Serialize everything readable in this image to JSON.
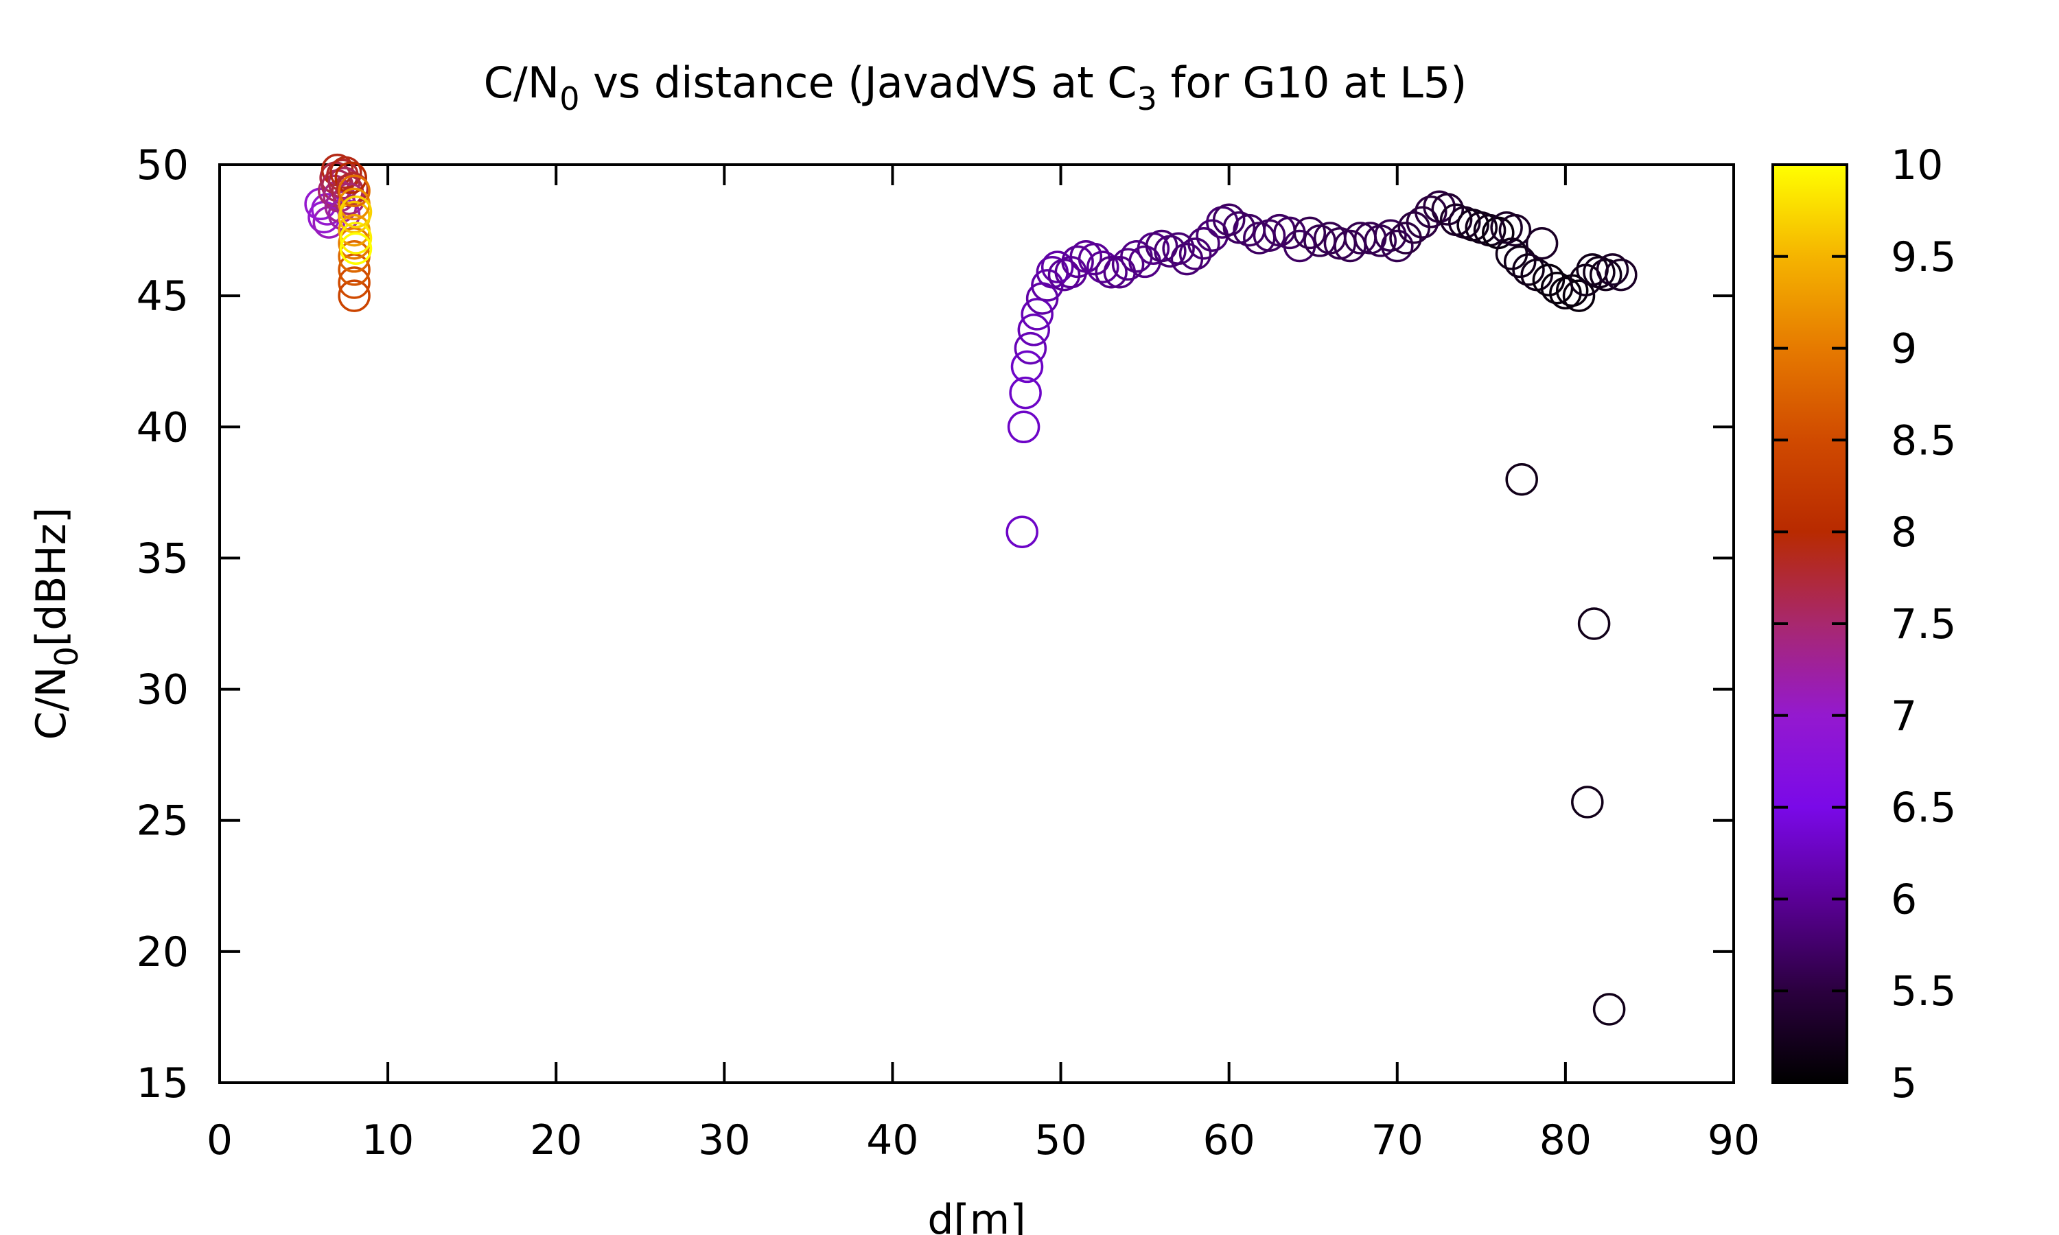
{
  "chart_data": {
    "type": "scatter",
    "title": {
      "prefix": "C/N",
      "sub1": "0",
      "middle": " vs distance (JavadVS at C",
      "sub2": "3",
      "suffix": " for G10 at L5)"
    },
    "xlabel": "d[m]",
    "ylabel": {
      "prefix": "C/N",
      "sub": "0",
      "suffix": "[dBHz]"
    },
    "xlim": [
      0,
      90
    ],
    "ylim": [
      15,
      50
    ],
    "xticks": [
      0,
      10,
      20,
      30,
      40,
      50,
      60,
      70,
      80,
      90
    ],
    "yticks": [
      15,
      20,
      25,
      30,
      35,
      40,
      45,
      50
    ],
    "colorbar": {
      "range": [
        5,
        10
      ],
      "ticks": [
        "5",
        "5.5",
        "6",
        "6.5",
        "7",
        "7.5",
        "8",
        "8.5",
        "9",
        "9.5",
        "10"
      ],
      "palette": "gnuplot-default (black-purple-red-orange-yellow)"
    },
    "marker": "open-circle",
    "grid": false,
    "legend": "none",
    "points": [
      [
        6.0,
        48.5,
        7.0
      ],
      [
        6.2,
        48.0,
        7.0
      ],
      [
        6.5,
        47.8,
        7.1
      ],
      [
        6.4,
        48.3,
        7.0
      ],
      [
        6.8,
        49.0,
        7.5
      ],
      [
        6.9,
        49.5,
        7.7
      ],
      [
        7.0,
        49.8,
        7.9
      ],
      [
        7.0,
        49.2,
        7.6
      ],
      [
        7.1,
        48.8,
        7.4
      ],
      [
        7.2,
        48.4,
        7.3
      ],
      [
        7.3,
        49.6,
        7.8
      ],
      [
        7.4,
        49.3,
        7.6
      ],
      [
        7.5,
        49.7,
        7.9
      ],
      [
        7.6,
        49.0,
        7.7
      ],
      [
        7.7,
        48.7,
        7.5
      ],
      [
        7.4,
        48.1,
        7.2
      ],
      [
        7.8,
        49.5,
        8.0
      ],
      [
        7.9,
        49.1,
        7.8
      ],
      [
        8.0,
        45.0,
        8.4
      ],
      [
        8.0,
        45.5,
        8.5
      ],
      [
        8.0,
        46.0,
        8.6
      ],
      [
        8.0,
        46.5,
        8.8
      ],
      [
        8.0,
        47.0,
        9.0
      ],
      [
        8.0,
        47.5,
        9.3
      ],
      [
        8.0,
        48.0,
        9.6
      ],
      [
        8.0,
        48.5,
        9.2
      ],
      [
        8.0,
        49.0,
        8.9
      ],
      [
        8.1,
        47.2,
        9.9
      ],
      [
        8.1,
        46.8,
        10.0
      ],
      [
        8.1,
        48.2,
        9.7
      ],
      [
        47.7,
        36.0,
        6.3
      ],
      [
        47.8,
        40.0,
        6.3
      ],
      [
        47.9,
        41.3,
        6.3
      ],
      [
        48.0,
        42.3,
        6.3
      ],
      [
        48.2,
        43.0,
        6.2
      ],
      [
        48.4,
        43.7,
        6.2
      ],
      [
        48.6,
        44.3,
        6.2
      ],
      [
        48.9,
        44.9,
        6.1
      ],
      [
        49.2,
        45.4,
        6.1
      ],
      [
        49.5,
        45.9,
        6.1
      ],
      [
        49.8,
        46.1,
        6.1
      ],
      [
        50.2,
        45.8,
        6.0
      ],
      [
        50.6,
        45.9,
        6.0
      ],
      [
        51.0,
        46.3,
        6.0
      ],
      [
        51.5,
        46.5,
        6.0
      ],
      [
        52.0,
        46.4,
        6.0
      ],
      [
        52.5,
        46.1,
        6.0
      ],
      [
        53.0,
        45.9,
        5.9
      ],
      [
        53.5,
        45.9,
        5.9
      ],
      [
        54.0,
        46.2,
        5.9
      ],
      [
        54.5,
        46.5,
        5.9
      ],
      [
        55.0,
        46.3,
        5.9
      ],
      [
        55.5,
        46.8,
        5.9
      ],
      [
        56.0,
        46.9,
        5.8
      ],
      [
        56.5,
        46.7,
        5.8
      ],
      [
        57.0,
        46.8,
        5.8
      ],
      [
        57.5,
        46.4,
        5.8
      ],
      [
        58.0,
        46.6,
        5.8
      ],
      [
        58.5,
        47.0,
        5.8
      ],
      [
        59.0,
        47.3,
        5.8
      ],
      [
        59.6,
        47.8,
        5.8
      ],
      [
        60.0,
        47.9,
        5.7
      ],
      [
        60.6,
        47.6,
        5.7
      ],
      [
        61.2,
        47.5,
        5.7
      ],
      [
        61.8,
        47.2,
        5.7
      ],
      [
        62.4,
        47.3,
        5.7
      ],
      [
        63.0,
        47.5,
        5.7
      ],
      [
        63.6,
        47.4,
        5.7
      ],
      [
        64.2,
        46.9,
        5.7
      ],
      [
        64.8,
        47.4,
        5.6
      ],
      [
        65.4,
        47.1,
        5.6
      ],
      [
        66.0,
        47.2,
        5.6
      ],
      [
        66.6,
        47.0,
        5.6
      ],
      [
        67.2,
        46.9,
        5.6
      ],
      [
        67.8,
        47.2,
        5.6
      ],
      [
        68.4,
        47.2,
        5.6
      ],
      [
        69.0,
        47.1,
        5.6
      ],
      [
        69.6,
        47.3,
        5.6
      ],
      [
        70.0,
        46.9,
        5.6
      ],
      [
        70.5,
        47.2,
        5.5
      ],
      [
        71.0,
        47.6,
        5.5
      ],
      [
        71.5,
        47.8,
        5.5
      ],
      [
        72.0,
        48.2,
        5.5
      ],
      [
        72.5,
        48.4,
        5.5
      ],
      [
        73.0,
        48.3,
        5.4
      ],
      [
        73.5,
        47.9,
        5.3
      ],
      [
        74.0,
        47.8,
        5.3
      ],
      [
        74.5,
        47.7,
        5.2
      ],
      [
        75.0,
        47.6,
        5.2
      ],
      [
        75.5,
        47.5,
        5.2
      ],
      [
        76.0,
        47.4,
        5.1
      ],
      [
        76.5,
        47.6,
        5.3
      ],
      [
        77.0,
        47.5,
        5.3
      ],
      [
        76.8,
        46.6,
        5.2
      ],
      [
        77.3,
        46.3,
        5.2
      ],
      [
        77.8,
        46.0,
        5.2
      ],
      [
        78.3,
        45.8,
        5.2
      ],
      [
        78.6,
        47.0,
        5.3
      ],
      [
        79.0,
        45.6,
        5.1
      ],
      [
        79.5,
        45.3,
        5.1
      ],
      [
        80.0,
        45.1,
        5.1
      ],
      [
        80.4,
        45.2,
        5.1
      ],
      [
        80.8,
        45.0,
        5.1
      ],
      [
        81.2,
        45.6,
        5.2
      ],
      [
        81.6,
        46.0,
        5.2
      ],
      [
        82.0,
        45.9,
        5.2
      ],
      [
        82.4,
        45.8,
        5.2
      ],
      [
        82.8,
        46.0,
        5.3
      ],
      [
        83.3,
        45.8,
        5.3
      ],
      [
        77.4,
        38.0,
        5.2
      ],
      [
        81.7,
        32.5,
        5.2
      ],
      [
        81.3,
        25.7,
        5.2
      ],
      [
        82.6,
        17.8,
        5.2
      ]
    ]
  }
}
